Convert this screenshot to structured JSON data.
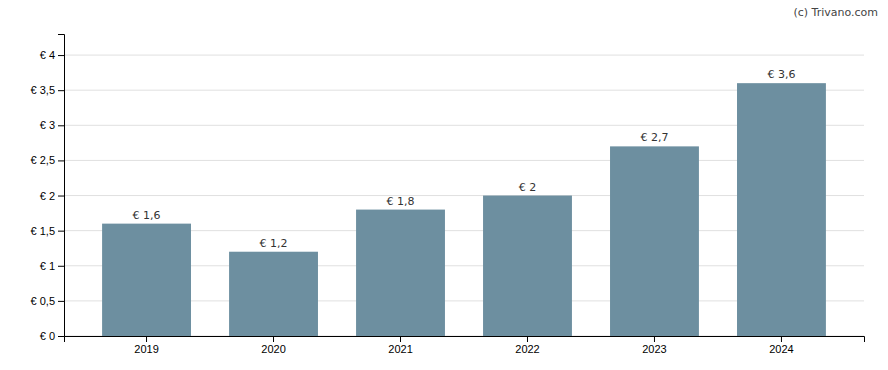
{
  "chart_data": {
    "type": "bar",
    "categories": [
      "2019",
      "2020",
      "2021",
      "2022",
      "2023",
      "2024"
    ],
    "values": [
      1.6,
      1.2,
      1.8,
      2.0,
      2.7,
      3.6
    ],
    "value_labels": [
      "€ 1,6",
      "€ 1,2",
      "€ 1,8",
      "€ 2",
      "€ 2,7",
      "€ 3,6"
    ],
    "data_labels": true,
    "color": "#6d8fa0",
    "ylim": [
      0,
      4.3
    ],
    "yticks": [
      {
        "value": 0,
        "label": "€ 0"
      },
      {
        "value": 0.5,
        "label": "€ 0,5"
      },
      {
        "value": 1.0,
        "label": "€ 1"
      },
      {
        "value": 1.5,
        "label": "€ 1,5"
      },
      {
        "value": 2.0,
        "label": "€ 2"
      },
      {
        "value": 2.5,
        "label": "€ 2,5"
      },
      {
        "value": 3.0,
        "label": "€ 3"
      },
      {
        "value": 3.5,
        "label": "€ 3,5"
      },
      {
        "value": 4.0,
        "label": "€ 4"
      }
    ],
    "grid": true,
    "annotations": [
      "(c) Trivano.com"
    ]
  }
}
